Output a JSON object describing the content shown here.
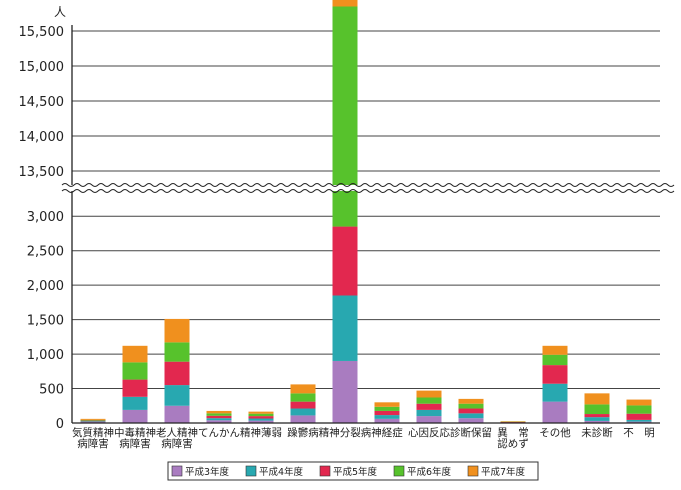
{
  "chart_data": {
    "type": "bar",
    "stacked": true,
    "unit": "人",
    "broken_axis": true,
    "y_ticks_lower": [
      "0",
      "500",
      "1,000",
      "1,500",
      "2,000",
      "2,500",
      "3,000"
    ],
    "y_ticks_upper": [
      "13,500",
      "14,000",
      "14,500",
      "15,000",
      "15,500"
    ],
    "ylim_lower": [
      0,
      3250
    ],
    "ylim_upper": [
      13400,
      15500
    ],
    "grid": true,
    "legend_position": "bottom",
    "categories": [
      [
        "気質精神",
        "病障害"
      ],
      [
        "中毒精神",
        "病障害"
      ],
      [
        "老人精神",
        "病障害"
      ],
      [
        "てんかん"
      ],
      [
        "精神薄弱"
      ],
      [
        "躁鬱病"
      ],
      [
        "精神分裂病"
      ],
      [
        "神経症"
      ],
      [
        "心因反応"
      ],
      [
        "診断保留"
      ],
      [
        "異　常",
        "認めず"
      ],
      [
        "その他"
      ],
      [
        "未診断"
      ],
      [
        "不　明"
      ]
    ],
    "series": [
      {
        "name": "平成3年度",
        "color": "#a97cc0",
        "values": [
          15,
          190,
          250,
          40,
          35,
          110,
          900,
          60,
          100,
          70,
          5,
          310,
          30,
          20
        ]
      },
      {
        "name": "平成4年度",
        "color": "#28a8b0",
        "values": [
          10,
          190,
          300,
          30,
          30,
          100,
          950,
          55,
          90,
          70,
          5,
          260,
          55,
          25
        ]
      },
      {
        "name": "平成5年度",
        "color": "#e2284f",
        "values": [
          10,
          250,
          340,
          35,
          35,
          100,
          1000,
          60,
          90,
          70,
          5,
          270,
          45,
          90
        ]
      },
      {
        "name": "平成6年度",
        "color": "#57c22c",
        "values": [
          10,
          250,
          280,
          35,
          35,
          120,
          13000,
          60,
          90,
          70,
          5,
          150,
          140,
          120
        ]
      },
      {
        "name": "平成7年度",
        "color": "#f0901e",
        "values": [
          15,
          240,
          340,
          35,
          30,
          130,
          1230,
          65,
          100,
          70,
          5,
          130,
          160,
          85
        ]
      }
    ]
  }
}
